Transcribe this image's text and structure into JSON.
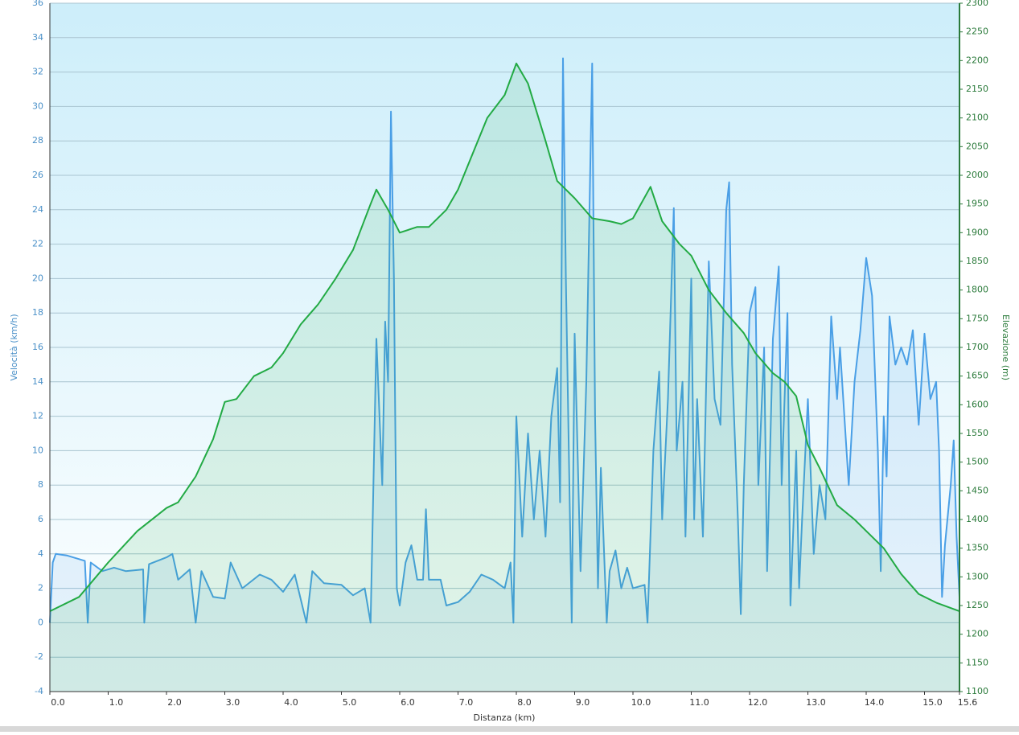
{
  "chart_data": {
    "type": "line",
    "x_label": "Distanza  (km)",
    "y_label": "Velocità (km/h)",
    "y2_label": "Elevazione (m)",
    "xlim": [
      0,
      15.6
    ],
    "xticks": [
      {
        "value": 0,
        "label": "0.0"
      },
      {
        "value": 1,
        "label": "1.0"
      },
      {
        "value": 2,
        "label": "2.0"
      },
      {
        "value": 3,
        "label": "3.0"
      },
      {
        "value": 4,
        "label": "4.0"
      },
      {
        "value": 5,
        "label": "5.0"
      },
      {
        "value": 6,
        "label": "6.0"
      },
      {
        "value": 7,
        "label": "7.0"
      },
      {
        "value": 8,
        "label": "8.0"
      },
      {
        "value": 9,
        "label": "9.0"
      },
      {
        "value": 10,
        "label": "10.0"
      },
      {
        "value": 11,
        "label": "11.0"
      },
      {
        "value": 12,
        "label": "12.0"
      },
      {
        "value": 13,
        "label": "13.0"
      },
      {
        "value": 14,
        "label": "14.0"
      },
      {
        "value": 15,
        "label": "15.0"
      },
      15.6
    ],
    "ylim": [
      -4,
      36
    ],
    "yticks": [
      -4,
      -2,
      0,
      2,
      4,
      6,
      8,
      10,
      12,
      14,
      16,
      18,
      20,
      22,
      24,
      26,
      28,
      30,
      32,
      34,
      36
    ],
    "y2lim": [
      1100,
      2300
    ],
    "y2ticks": [
      1100,
      1150,
      1200,
      1250,
      1300,
      1350,
      1400,
      1450,
      1500,
      1550,
      1600,
      1650,
      1700,
      1750,
      1800,
      1850,
      1900,
      1950,
      2000,
      2050,
      2100,
      2150,
      2200,
      2250,
      2300
    ],
    "grid": true,
    "series": [
      {
        "color": "#4a9fe6",
        "axis": "y",
        "x": [
          0,
          0.05,
          0.1,
          0.3,
          0.6,
          0.65,
          0.7,
          0.9,
          1.1,
          1.3,
          1.6,
          1.62,
          1.7,
          2.0,
          2.1,
          2.2,
          2.4,
          2.5,
          2.6,
          2.8,
          3.0,
          3.1,
          3.3,
          3.6,
          3.8,
          4.0,
          4.2,
          4.4,
          4.5,
          4.7,
          5.0,
          5.2,
          5.4,
          5.5,
          5.6,
          5.7,
          5.75,
          5.8,
          5.85,
          5.9,
          5.95,
          6.0,
          6.1,
          6.2,
          6.3,
          6.4,
          6.45,
          6.5,
          6.7,
          6.8,
          7.0,
          7.2,
          7.4,
          7.6,
          7.8,
          7.9,
          7.95,
          8.0,
          8.1,
          8.2,
          8.3,
          8.4,
          8.5,
          8.6,
          8.7,
          8.75,
          8.8,
          8.85,
          8.95,
          9.0,
          9.1,
          9.2,
          9.3,
          9.35,
          9.4,
          9.45,
          9.55,
          9.6,
          9.7,
          9.8,
          9.9,
          10.0,
          10.2,
          10.25,
          10.35,
          10.45,
          10.5,
          10.6,
          10.7,
          10.75,
          10.85,
          10.9,
          11.0,
          11.05,
          11.1,
          11.2,
          11.3,
          11.4,
          11.5,
          11.6,
          11.65,
          11.7,
          11.8,
          11.85,
          11.9,
          12.0,
          12.1,
          12.15,
          12.25,
          12.3,
          12.4,
          12.5,
          12.55,
          12.65,
          12.7,
          12.8,
          12.85,
          12.9,
          13.0,
          13.1,
          13.2,
          13.3,
          13.4,
          13.5,
          13.55,
          13.7,
          13.8,
          13.9,
          14.0,
          14.1,
          14.2,
          14.25,
          14.3,
          14.35,
          14.4,
          14.5,
          14.6,
          14.7,
          14.8,
          14.9,
          15.0,
          15.1,
          15.2,
          15.25,
          15.3,
          15.35,
          15.45,
          15.5,
          15.55,
          15.6
        ],
        "values": [
          0,
          3.5,
          4,
          3.9,
          3.6,
          0,
          3.5,
          3,
          3.2,
          3,
          3.1,
          0,
          3.4,
          3.8,
          4,
          2.5,
          3.1,
          0,
          3,
          1.5,
          1.4,
          3.5,
          2,
          2.8,
          2.5,
          1.8,
          2.8,
          0,
          3,
          2.3,
          2.2,
          1.6,
          2,
          0,
          16.5,
          8,
          17.5,
          14,
          29.7,
          20,
          2,
          1,
          3.5,
          4.5,
          2.5,
          2.5,
          6.6,
          2.5,
          2.5,
          1,
          1.2,
          1.8,
          2.8,
          2.5,
          2,
          3.5,
          0,
          12,
          5,
          11,
          6,
          10,
          5,
          12,
          14.8,
          7,
          32.8,
          20,
          0,
          16.8,
          3,
          14,
          32.5,
          12,
          2,
          9,
          0,
          3,
          4.2,
          2,
          3.2,
          2,
          2.2,
          0,
          10,
          14.6,
          6,
          13,
          24.1,
          10,
          14,
          5,
          20,
          6,
          13,
          5,
          21,
          13,
          11.5,
          24,
          25.6,
          15,
          6,
          0.5,
          8,
          18,
          19.5,
          8,
          16,
          3,
          16.5,
          20.7,
          8,
          18,
          1,
          10,
          2,
          6,
          13,
          4,
          8,
          6,
          17.8,
          13,
          16,
          8,
          14,
          17,
          21.2,
          19,
          10,
          3,
          12,
          8.5,
          17.8,
          15,
          16,
          15,
          17,
          11.5,
          16.8,
          13,
          14,
          10,
          1.5,
          4.5,
          8,
          10.6,
          5,
          1.5
        ]
      },
      {
        "color": "#22aa44",
        "axis": "y2",
        "x": [
          0,
          0.5,
          1.0,
          1.5,
          2.0,
          2.2,
          2.5,
          2.8,
          3.0,
          3.2,
          3.5,
          3.8,
          4.0,
          4.3,
          4.6,
          4.9,
          5.2,
          5.5,
          5.6,
          5.8,
          6.0,
          6.3,
          6.5,
          6.8,
          7.0,
          7.3,
          7.5,
          7.8,
          8.0,
          8.2,
          8.5,
          8.7,
          9.0,
          9.3,
          9.6,
          9.8,
          10.0,
          10.3,
          10.5,
          10.8,
          11.0,
          11.3,
          11.6,
          11.9,
          12.1,
          12.4,
          12.6,
          12.8,
          13.0,
          13.2,
          13.5,
          13.8,
          14.0,
          14.3,
          14.6,
          14.9,
          15.2,
          15.6
        ],
        "values": [
          1240,
          1265,
          1325,
          1380,
          1420,
          1430,
          1475,
          1540,
          1605,
          1610,
          1650,
          1665,
          1690,
          1740,
          1775,
          1820,
          1870,
          1950,
          1975,
          1940,
          1900,
          1910,
          1910,
          1940,
          1975,
          2050,
          2100,
          2140,
          2195,
          2160,
          2060,
          1990,
          1960,
          1925,
          1920,
          1915,
          1925,
          1980,
          1920,
          1880,
          1860,
          1800,
          1760,
          1725,
          1690,
          1655,
          1640,
          1615,
          1530,
          1490,
          1425,
          1400,
          1380,
          1350,
          1305,
          1270,
          1255,
          1240
        ]
      }
    ]
  }
}
